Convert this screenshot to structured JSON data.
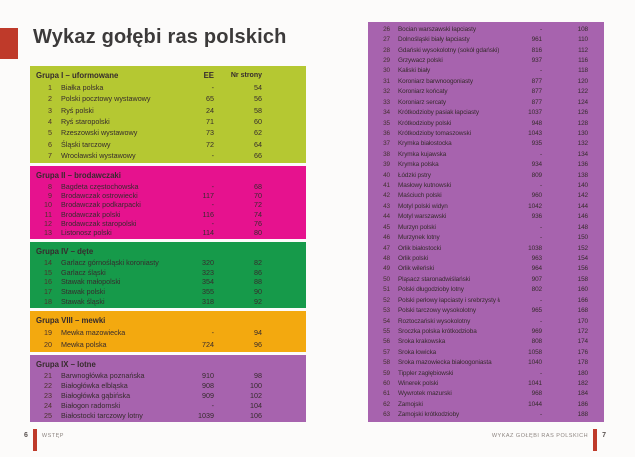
{
  "page": {
    "title": "Wykaz gołębi ras polskich"
  },
  "table_headers": {
    "ee": "EE",
    "page": "Nr strony"
  },
  "colors": {
    "accent_red": "#bf3a2a",
    "group1_bg": "#b5c832",
    "group2_bg": "#e6128e",
    "group4_bg": "#169a4a",
    "group8_bg": "#f3a90f",
    "group9_bg": "#a763ae",
    "right_table_bg": "#a763ae"
  },
  "left_groups": [
    {
      "title": "Grupa I – uformowane",
      "color": "#b5c832",
      "show_column_headers": true,
      "rows": [
        [
          "1",
          "Białka polska",
          "-",
          "54"
        ],
        [
          "2",
          "Polski pocztowy wystawowy",
          "65",
          "56"
        ],
        [
          "3",
          "Ryś polski",
          "24",
          "58"
        ],
        [
          "4",
          "Ryś staropolski",
          "71",
          "60"
        ],
        [
          "5",
          "Rzeszowski wystawowy",
          "73",
          "62"
        ],
        [
          "6",
          "Śląski tarczowy",
          "72",
          "64"
        ],
        [
          "7",
          "Wrocławski wystawowy",
          "-",
          "66"
        ]
      ]
    },
    {
      "title": "Grupa II – brodawczaki",
      "color": "#e6128e",
      "show_column_headers": false,
      "rows": [
        [
          "8",
          "Bagdeta częstochowska",
          "-",
          "68"
        ],
        [
          "9",
          "Brodawczak ostrowiecki",
          "117",
          "70"
        ],
        [
          "10",
          "Brodawczak podkarpacki",
          "-",
          "72"
        ],
        [
          "11",
          "Brodawczak polski",
          "116",
          "74"
        ],
        [
          "12",
          "Brodawczak staropolski",
          "-",
          "76"
        ],
        [
          "13",
          "Listonosz polski",
          "114",
          "80"
        ]
      ]
    },
    {
      "title": "Grupa IV – dęte",
      "color": "#169a4a",
      "show_column_headers": false,
      "rows": [
        [
          "14",
          "Garlacz górnośląski koroniasty",
          "320",
          "82"
        ],
        [
          "15",
          "Garlacz śląski",
          "323",
          "86"
        ],
        [
          "16",
          "Stawak małopolski",
          "354",
          "88"
        ],
        [
          "17",
          "Stawak polski",
          "355",
          "90"
        ],
        [
          "18",
          "Stawak śląski",
          "318",
          "92"
        ]
      ]
    },
    {
      "title": "Grupa VIII – mewki",
      "color": "#f3a90f",
      "show_column_headers": false,
      "rows": [
        [
          "19",
          "Mewka mazowiecka",
          "-",
          "94"
        ],
        [
          "20",
          "Mewka polska",
          "724",
          "96"
        ]
      ]
    },
    {
      "title": "Grupa IX – lotne",
      "color": "#a763ae",
      "show_column_headers": false,
      "rows": [
        [
          "21",
          "Barwnogłówka poznańska",
          "910",
          "98"
        ],
        [
          "22",
          "Białogłówka elbląska",
          "908",
          "100"
        ],
        [
          "23",
          "Białogłówka gąbińska",
          "909",
          "102"
        ],
        [
          "24",
          "Białogon radomski",
          "-",
          "104"
        ],
        [
          "25",
          "Białostocki tarczowy lotny",
          "1039",
          "106"
        ]
      ]
    }
  ],
  "right_table": {
    "color": "#a763ae",
    "rows": [
      [
        "26",
        "Bocian warszawski łapciasty",
        "-",
        "108"
      ],
      [
        "27",
        "Dolnośląski biały łapciasty",
        "961",
        "110"
      ],
      [
        "28",
        "Gdański wysokolotny (sokół gdański)",
        "816",
        "112"
      ],
      [
        "29",
        "Grzywacz polski",
        "937",
        "116"
      ],
      [
        "30",
        "Kaliski biały",
        "-",
        "118"
      ],
      [
        "31",
        "Koroniarz barwnoogoniasty",
        "877",
        "120"
      ],
      [
        "32",
        "Koroniarz końcaty",
        "877",
        "122"
      ],
      [
        "33",
        "Koroniarz sercaty",
        "877",
        "124"
      ],
      [
        "34",
        "Krótkodzioby pasiak łapciasty",
        "1037",
        "126"
      ],
      [
        "35",
        "Krótkodzioby polski",
        "948",
        "128"
      ],
      [
        "36",
        "Krótkodzioby tomaszowski",
        "1043",
        "130"
      ],
      [
        "37",
        "Krymka białostocka",
        "935",
        "132"
      ],
      [
        "38",
        "Krymka kujawska",
        "-",
        "134"
      ],
      [
        "39",
        "Krymka polska",
        "934",
        "136"
      ],
      [
        "40",
        "Łódzki pstry",
        "809",
        "138"
      ],
      [
        "41",
        "Masłowy kutnowski",
        "-",
        "140"
      ],
      [
        "42",
        "Maściuch polski",
        "960",
        "142"
      ],
      [
        "43",
        "Motyl polski widyn",
        "1042",
        "144"
      ],
      [
        "44",
        "Motyl warszawski",
        "936",
        "146"
      ],
      [
        "45",
        "Murzyn polski",
        "-",
        "148"
      ],
      [
        "46",
        "Murzynek lotny",
        "-",
        "150"
      ],
      [
        "47",
        "Orlik białostocki",
        "1038",
        "152"
      ],
      [
        "48",
        "Orlik polski",
        "963",
        "154"
      ],
      [
        "49",
        "Orlik wileński",
        "964",
        "156"
      ],
      [
        "50",
        "Pląsacz staronadwiślański",
        "907",
        "158"
      ],
      [
        "51",
        "Polski długodzioby lotny",
        "802",
        "160"
      ],
      [
        "52",
        "Polski perłowy łapciasty i srebrzysty łapciasty",
        "-",
        "166"
      ],
      [
        "53",
        "Polski tarczowy wysokolotny",
        "965",
        "168"
      ],
      [
        "54",
        "Roztoczański wysokolotny",
        "-",
        "170"
      ],
      [
        "55",
        "Sroczka polska krótkodzioba",
        "969",
        "172"
      ],
      [
        "56",
        "Sroka krakowska",
        "808",
        "174"
      ],
      [
        "57",
        "Sroka łowicka",
        "1058",
        "176"
      ],
      [
        "58",
        "Sroka mazowiecka białoogoniasta",
        "1040",
        "178"
      ],
      [
        "59",
        "Tippler zagłębiowski",
        "-",
        "180"
      ],
      [
        "60",
        "Winerek polski",
        "1041",
        "182"
      ],
      [
        "61",
        "Wywrotek mazurski",
        "968",
        "184"
      ],
      [
        "62",
        "Zamojski",
        "1044",
        "186"
      ],
      [
        "63",
        "Zamojski krótkodzioby",
        "-",
        "188"
      ]
    ]
  },
  "footer": {
    "left": {
      "page_number": "6",
      "section": "WSTĘP"
    },
    "right": {
      "section": "WYKAZ GOŁĘBI RAS POLSKICH",
      "page_number": "7"
    }
  }
}
